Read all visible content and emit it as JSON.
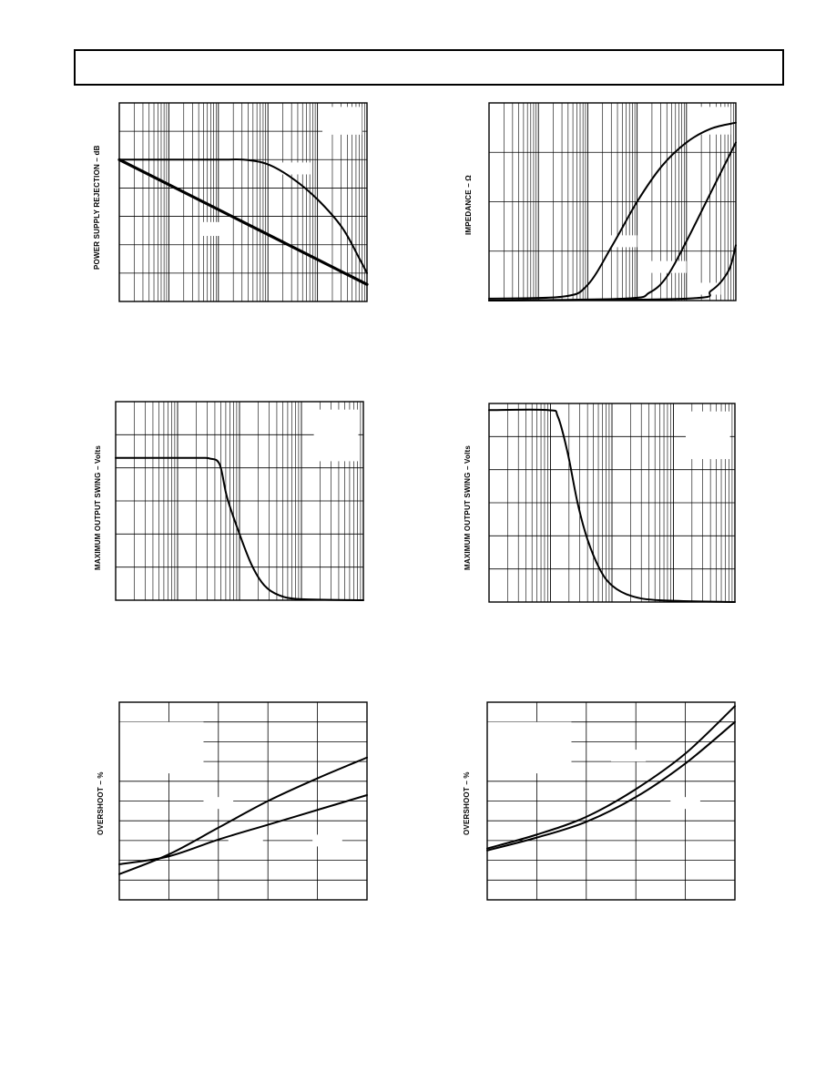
{
  "header": {
    "title": ""
  },
  "charts": [
    {
      "id": "psr",
      "ylabel": "POWER SUPPLY REJECTION – dB",
      "chart_data": {
        "type": "line",
        "xscale": "log",
        "xdecades": 5,
        "ydivs": 7,
        "grid": true,
        "series": [
          {
            "values": [
              [
                0.0,
                1.5
              ],
              [
                0.4,
                1.5
              ],
              [
                0.5,
                1.5
              ],
              [
                0.6,
                1.45
              ],
              [
                0.7,
                1.3
              ],
              [
                0.8,
                1.08
              ],
              [
                0.9,
                0.78
              ],
              [
                0.97,
                0.45
              ],
              [
                1.0,
                0.3
              ]
            ]
          },
          {
            "values": [
              [
                0.0,
                1.5
              ],
              [
                1.0,
                0.18
              ]
            ],
            "bold": true
          }
        ]
      }
    },
    {
      "id": "impedance",
      "ylabel": "IMPEDANCE – Ω",
      "chart_data": {
        "type": "line",
        "xscale": "log",
        "xdecades": 5,
        "ydivs": 4,
        "grid": true,
        "series": [
          {
            "values": [
              [
                0.0,
                0.01
              ],
              [
                0.3,
                0.02
              ],
              [
                0.4,
                0.08
              ],
              [
                0.5,
                0.28
              ],
              [
                0.6,
                0.5
              ],
              [
                0.7,
                0.68
              ],
              [
                0.8,
                0.8
              ],
              [
                0.9,
                0.87
              ],
              [
                1.0,
                0.9
              ]
            ]
          },
          {
            "values": [
              [
                0.0,
                0.0
              ],
              [
                0.55,
                0.01
              ],
              [
                0.65,
                0.04
              ],
              [
                0.72,
                0.12
              ],
              [
                0.8,
                0.3
              ],
              [
                0.9,
                0.55
              ],
              [
                1.0,
                0.8
              ]
            ]
          },
          {
            "values": [
              [
                0.0,
                0.0
              ],
              [
                0.8,
                0.01
              ],
              [
                0.9,
                0.05
              ],
              [
                0.97,
                0.15
              ],
              [
                1.0,
                0.28
              ]
            ]
          }
        ]
      }
    },
    {
      "id": "swing-left",
      "ylabel": "MAXIMUM OUTPUT SWING – Volts",
      "chart_data": {
        "type": "line",
        "xscale": "log",
        "xdecades": 4,
        "ydivs": 6,
        "grid": true,
        "series": [
          {
            "values": [
              [
                0.0,
                4.3
              ],
              [
                0.32,
                4.3
              ],
              [
                0.38,
                4.28
              ],
              [
                0.42,
                4.1
              ],
              [
                0.45,
                3.1
              ],
              [
                0.5,
                2.0
              ],
              [
                0.55,
                1.05
              ],
              [
                0.6,
                0.45
              ],
              [
                0.66,
                0.15
              ],
              [
                0.75,
                0.03
              ],
              [
                1.0,
                0.0
              ]
            ]
          }
        ]
      }
    },
    {
      "id": "swing-right",
      "ylabel": "MAXIMUM OUTPUT SWING – Volts",
      "chart_data": {
        "type": "line",
        "xscale": "log",
        "xdecades": 4,
        "ydivs": 6,
        "grid": true,
        "series": [
          {
            "values": [
              [
                0.0,
                5.8
              ],
              [
                0.24,
                5.8
              ],
              [
                0.28,
                5.6
              ],
              [
                0.32,
                4.5
              ],
              [
                0.36,
                3.0
              ],
              [
                0.4,
                1.9
              ],
              [
                0.45,
                1.0
              ],
              [
                0.5,
                0.5
              ],
              [
                0.58,
                0.18
              ],
              [
                0.7,
                0.05
              ],
              [
                1.0,
                0.0
              ]
            ]
          }
        ]
      }
    },
    {
      "id": "overshoot-left",
      "ylabel": "OVERSHOOT – %",
      "chart_data": {
        "type": "line",
        "xscale": "linear",
        "xdivs": 5,
        "ydivs": 10,
        "grid": true,
        "series": [
          {
            "values": [
              [
                0.0,
                1.3
              ],
              [
                0.2,
                2.3
              ],
              [
                0.4,
                3.65
              ],
              [
                0.6,
                5.0
              ],
              [
                0.8,
                6.15
              ],
              [
                1.0,
                7.2
              ]
            ]
          },
          {
            "values": [
              [
                0.0,
                1.8
              ],
              [
                0.2,
                2.2
              ],
              [
                0.4,
                3.05
              ],
              [
                0.6,
                3.8
              ],
              [
                0.8,
                4.55
              ],
              [
                1.0,
                5.3
              ]
            ]
          }
        ]
      }
    },
    {
      "id": "overshoot-right",
      "ylabel": "OVERSHOOT – %",
      "chart_data": {
        "type": "line",
        "xscale": "linear",
        "xdivs": 5,
        "ydivs": 10,
        "grid": true,
        "series": [
          {
            "values": [
              [
                0.0,
                2.6
              ],
              [
                0.2,
                3.3
              ],
              [
                0.4,
                4.2
              ],
              [
                0.6,
                5.6
              ],
              [
                0.8,
                7.4
              ],
              [
                1.0,
                9.8
              ]
            ]
          },
          {
            "values": [
              [
                0.0,
                2.5
              ],
              [
                0.2,
                3.15
              ],
              [
                0.4,
                3.95
              ],
              [
                0.6,
                5.2
              ],
              [
                0.8,
                6.9
              ],
              [
                1.0,
                9.0
              ]
            ]
          }
        ]
      }
    }
  ]
}
